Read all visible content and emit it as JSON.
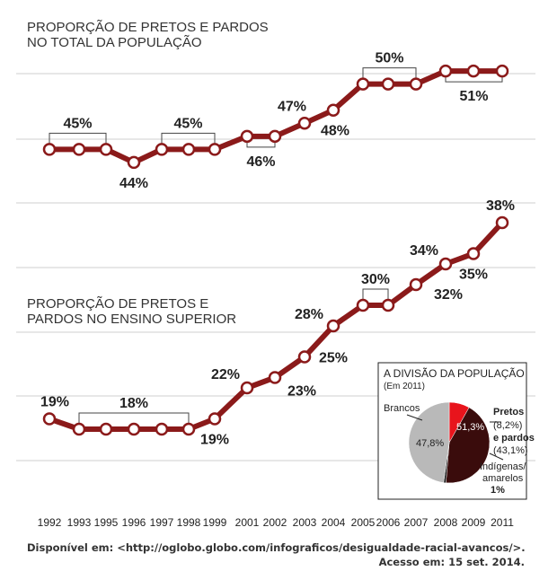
{
  "chart_data": [
    {
      "type": "line",
      "title_lines": [
        "PROPORÇÃO DE PRETOS E PARDOS",
        "NO TOTAL DA POPULAÇÃO"
      ],
      "x": [
        "1992",
        "1993",
        "1995",
        "1996",
        "1997",
        "1998",
        "1999",
        "2001",
        "2002",
        "2003",
        "2004",
        "2005",
        "2006",
        "2007",
        "2008",
        "2009",
        "2011"
      ],
      "values": [
        45,
        45,
        45,
        44,
        45,
        45,
        45,
        46,
        46,
        47,
        48,
        50,
        50,
        50,
        51,
        51,
        51
      ],
      "labels": [
        "45%",
        "44%",
        "45%",
        "46%",
        "47%",
        "48%",
        "50%",
        "51%"
      ],
      "ylim": [
        42,
        53
      ],
      "line_color": "#8b1a1a"
    },
    {
      "type": "line",
      "title_lines": [
        "PROPORÇÃO DE PRETOS E",
        "PARDOS NO ENSINO SUPERIOR"
      ],
      "x": [
        "1992",
        "1993",
        "1995",
        "1996",
        "1997",
        "1998",
        "1999",
        "2001",
        "2002",
        "2003",
        "2004",
        "2005",
        "2006",
        "2007",
        "2008",
        "2009",
        "2011"
      ],
      "values": [
        19,
        18,
        18,
        18,
        18,
        18,
        19,
        22,
        23,
        25,
        28,
        30,
        30,
        32,
        34,
        35,
        38
      ],
      "labels": [
        "19%",
        "18%",
        "19%",
        "22%",
        "23%",
        "25%",
        "28%",
        "30%",
        "32%",
        "34%",
        "35%",
        "38%"
      ],
      "ylim": [
        10,
        40
      ],
      "line_color": "#8b1a1a"
    },
    {
      "type": "pie",
      "title": "A DIVISÃO DA POPULAÇÃO",
      "subtitle": "(Em 2011)",
      "slices": [
        {
          "name": "Pretos",
          "value": 8.2,
          "label": "(8,2%)",
          "color": "#e8141c"
        },
        {
          "name": "e pardos",
          "value": 43.1,
          "label": "(43,1%)",
          "color": "#3a0c0c"
        },
        {
          "name": "Indígenas/ amarelos",
          "value": 0.9,
          "label": "1%",
          "color": "#111111"
        },
        {
          "name": "Brancos",
          "value": 47.8,
          "label": "47,8%",
          "color": "#b9b9b9"
        }
      ],
      "combined_label": "51,3%"
    }
  ],
  "source": {
    "line1": "Disponível em: <http://oglobo.globo.com/infograficos/desigualdade-racial-avancos/>.",
    "line2": "Acesso em: 15 set. 2014."
  }
}
